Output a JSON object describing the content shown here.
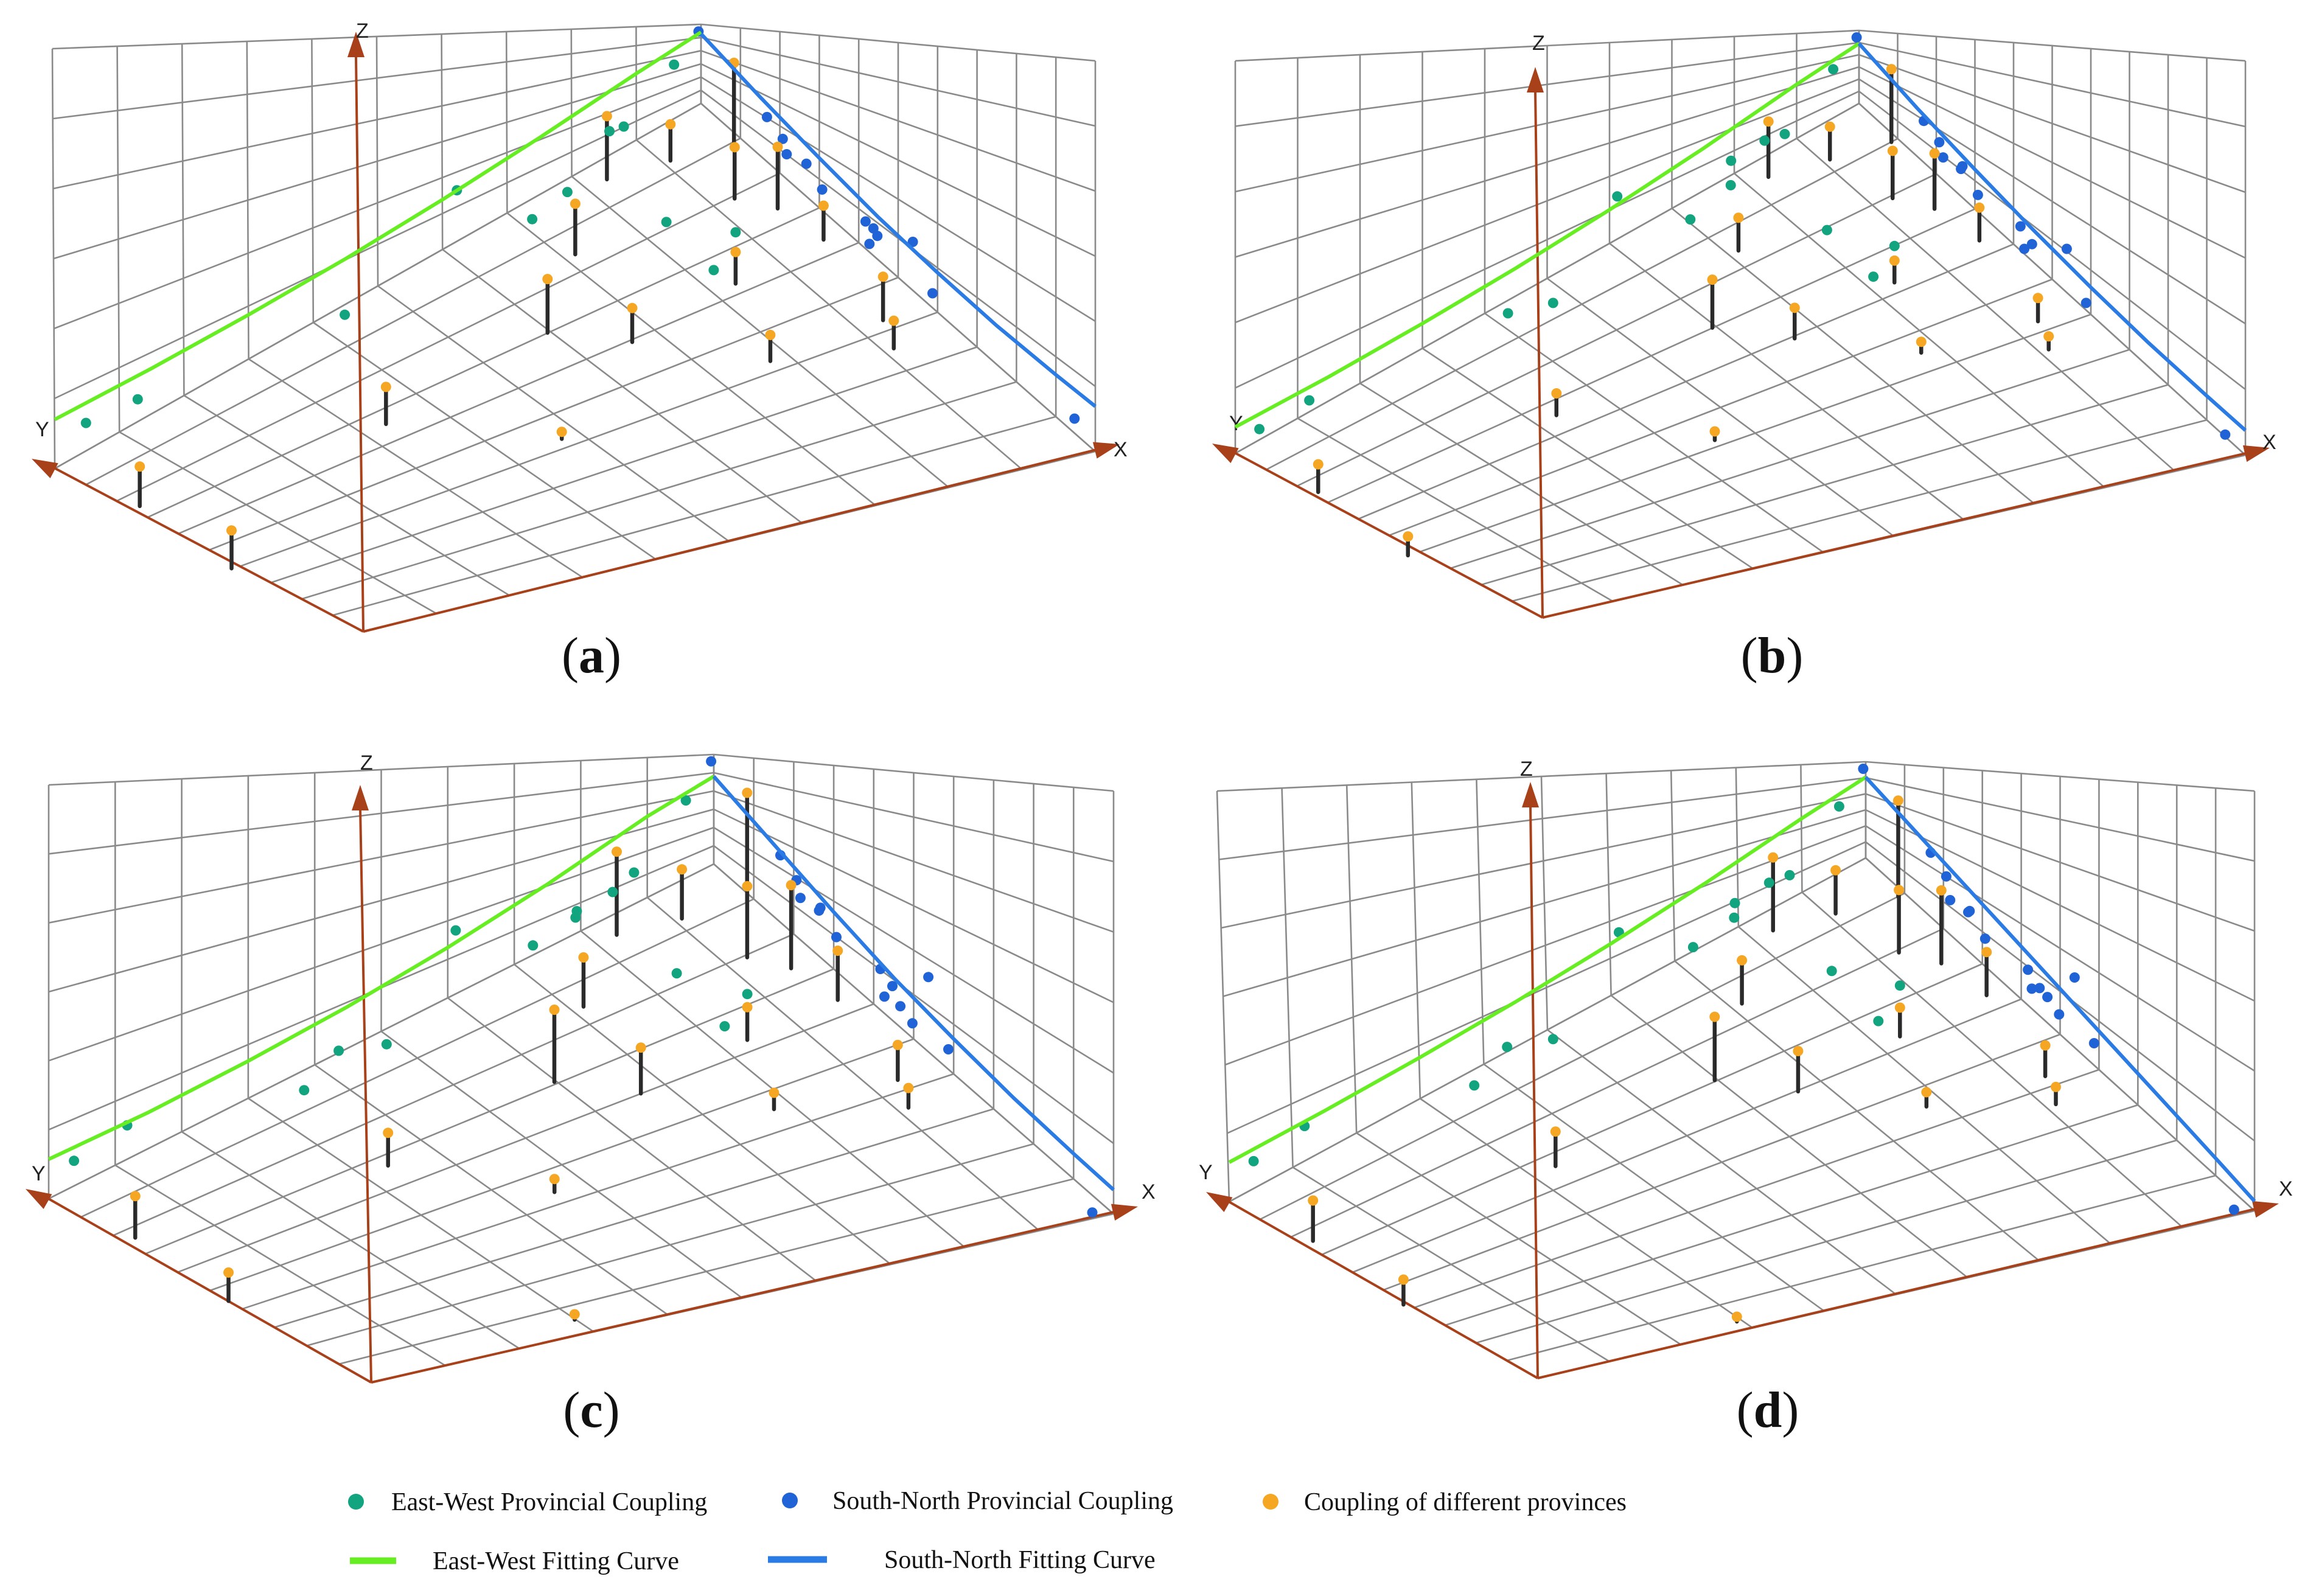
{
  "figure": {
    "axis_labels": {
      "x": "X",
      "y": "Y",
      "z": "Z"
    }
  },
  "colors": {
    "east_west": "#12a37f",
    "south_north": "#1f63d6",
    "different": "#f5a623",
    "fit_east_west": "#66ee22",
    "fit_south_north": "#2a7be4",
    "axis": "#a8401a",
    "grid": "#8a8a8a",
    "stem": "#2a2a2a"
  },
  "legend": {
    "east_west_point": "East-West Provincial Coupling",
    "south_north_point": "South-North Provincial Coupling",
    "different_point": "Coupling of different provinces",
    "east_west_curve": "East-West Fitting Curve",
    "south_north_curve": "South-North Fitting Curve"
  },
  "chart_data": [
    {
      "type": "scatter",
      "title": "",
      "panel": "a",
      "panel_label": "a",
      "axes": {
        "x_range": [
          0,
          10
        ],
        "y_range": [
          0,
          10
        ],
        "z_range": [
          0,
          10
        ],
        "grid": true
      },
      "east_west": [
        [
          0.3,
          9.7,
          5.7
        ],
        [
          0.3,
          8.9,
          5.0
        ],
        [
          0.8,
          6.0,
          4.5
        ],
        [
          0.8,
          3.1,
          3.2
        ],
        [
          0.5,
          1.5,
          6.2
        ],
        [
          1.2,
          2.8,
          7.0
        ],
        [
          0.2,
          3.9,
          7.9
        ],
        [
          0.3,
          1.6,
          5.2
        ],
        [
          2.4,
          2.0,
          4.8
        ],
        [
          3.6,
          2.0,
          4.0
        ],
        [
          3.5,
          1.6,
          6.5
        ],
        [
          0.3,
          0.6,
          9.0
        ]
      ],
      "south_north": [
        [
          2.0,
          0.2,
          8.0
        ],
        [
          2.4,
          0.2,
          7.0
        ],
        [
          3.0,
          0.2,
          6.5
        ],
        [
          4.5,
          0.2,
          5.8
        ],
        [
          4.7,
          0.2,
          5.8
        ],
        [
          2.5,
          0.2,
          5.5
        ],
        [
          3.4,
          0.2,
          5.0
        ],
        [
          4.8,
          0.2,
          5.3
        ],
        [
          5.7,
          0.2,
          8.5
        ],
        [
          6.2,
          0.2,
          4.2
        ],
        [
          4.6,
          0.2,
          3.4
        ],
        [
          9.8,
          0.2,
          4.2
        ],
        [
          0.1,
          0.1,
          10.0
        ]
      ],
      "different": [
        [
          1.5,
          9.6,
          5.0
        ],
        [
          3.5,
          9.4,
          4.8
        ],
        [
          2.5,
          6.4,
          4.7
        ],
        [
          2.5,
          3.9,
          6.8
        ],
        [
          5.2,
          2.1,
          3.3
        ],
        [
          3.5,
          3.2,
          4.3
        ],
        [
          1.4,
          2.8,
          6.4
        ],
        [
          6.2,
          0.8,
          3.5
        ],
        [
          3.5,
          1.6,
          4.0
        ],
        [
          0.4,
          1.7,
          8.0
        ],
        [
          2.0,
          0.7,
          6.5
        ],
        [
          5.6,
          0.6,
          5.5
        ],
        [
          0.7,
          0.9,
          4.6
        ],
        [
          2.6,
          0.4,
          7.8
        ],
        [
          3.6,
          0.3,
          4.3
        ],
        [
          1.0,
          0.1,
          10.0
        ],
        [
          4.5,
          4.9,
          0.9
        ]
      ],
      "fit_east_west": [
        [
          0,
          10.0,
          6.2
        ],
        [
          0,
          8.5,
          5.75
        ],
        [
          0,
          7.0,
          5.6
        ],
        [
          0,
          5.5,
          5.75
        ],
        [
          0,
          4.0,
          6.3
        ],
        [
          0,
          2.5,
          7.2
        ],
        [
          0,
          1.0,
          8.4
        ],
        [
          0,
          0,
          9.0
        ]
      ],
      "fit_south_north": [
        [
          0,
          0,
          8.8
        ],
        [
          1.5,
          0,
          7.4
        ],
        [
          3.0,
          0,
          6.3
        ],
        [
          4.5,
          0,
          5.4
        ],
        [
          6.0,
          0,
          5.0
        ],
        [
          7.5,
          0,
          4.9
        ],
        [
          9.0,
          0,
          5.3
        ],
        [
          10.0,
          0,
          5.7
        ]
      ]
    },
    {
      "type": "scatter",
      "title": "",
      "panel": "b",
      "panel_label": "b",
      "axes": {
        "x_range": [
          0,
          10
        ],
        "y_range": [
          0,
          10
        ],
        "z_range": [
          0,
          10
        ],
        "grid": true
      },
      "east_west": [
        [
          0.3,
          9.8,
          3.8
        ],
        [
          0.3,
          9.0,
          3.9
        ],
        [
          0.6,
          6.0,
          2.9
        ],
        [
          0.8,
          3.2,
          3.3
        ],
        [
          0.5,
          1.5,
          5.4
        ],
        [
          1.2,
          2.8,
          8.0
        ],
        [
          0.2,
          4.0,
          7.4
        ],
        [
          0.3,
          1.7,
          4.5
        ],
        [
          2.4,
          2.0,
          3.8
        ],
        [
          3.6,
          2.0,
          3.2
        ],
        [
          3.5,
          1.6,
          5.0
        ],
        [
          0.3,
          0.6,
          9.0
        ],
        [
          0.8,
          5.4,
          2.4
        ],
        [
          0.4,
          2.3,
          5.1
        ]
      ],
      "south_north": [
        [
          2.0,
          0.2,
          8.2
        ],
        [
          2.4,
          0.2,
          7.2
        ],
        [
          3.0,
          0.2,
          6.8
        ],
        [
          4.5,
          0.2,
          5.8
        ],
        [
          2.5,
          0.2,
          5.6
        ],
        [
          3.4,
          0.2,
          4.8
        ],
        [
          4.8,
          0.2,
          4.8
        ],
        [
          5.7,
          0.2,
          8.5
        ],
        [
          6.2,
          0.2,
          3.5
        ],
        [
          4.6,
          0.2,
          3.2
        ],
        [
          9.8,
          0.2,
          2.8
        ],
        [
          2.8,
          0.1,
          5.0
        ],
        [
          0.1,
          0.1,
          10.0
        ]
      ],
      "different": [
        [
          1.5,
          9.6,
          3.8
        ],
        [
          3.5,
          9.4,
          2.6
        ],
        [
          2.5,
          6.4,
          3.0
        ],
        [
          2.5,
          3.9,
          6.6
        ],
        [
          5.0,
          2.1,
          1.5
        ],
        [
          3.5,
          3.2,
          4.2
        ],
        [
          1.4,
          2.8,
          4.5
        ],
        [
          6.2,
          0.8,
          1.8
        ],
        [
          3.5,
          1.6,
          3.0
        ],
        [
          0.4,
          1.7,
          7.6
        ],
        [
          2.0,
          0.7,
          6.5
        ],
        [
          5.6,
          0.6,
          3.2
        ],
        [
          0.7,
          0.9,
          4.5
        ],
        [
          2.6,
          0.4,
          7.6
        ],
        [
          3.6,
          0.3,
          4.5
        ],
        [
          1.0,
          0.1,
          10.0
        ],
        [
          4.5,
          5.1,
          1.2
        ]
      ],
      "fit_east_west": [
        [
          0,
          10.0,
          3.6
        ],
        [
          0,
          8.5,
          3.3
        ],
        [
          0,
          7.0,
          3.4
        ],
        [
          0,
          5.5,
          3.8
        ],
        [
          0,
          4.0,
          4.6
        ],
        [
          0,
          2.5,
          5.8
        ],
        [
          0,
          1.0,
          7.4
        ],
        [
          0,
          0,
          8.2
        ]
      ],
      "fit_south_north": [
        [
          0,
          0,
          8.2
        ],
        [
          1.5,
          0,
          6.6
        ],
        [
          3.0,
          0,
          5.4
        ],
        [
          4.5,
          0,
          4.4
        ],
        [
          6.0,
          0,
          3.7
        ],
        [
          7.5,
          0,
          3.3
        ],
        [
          9.0,
          0,
          3.3
        ],
        [
          10.0,
          0,
          3.4
        ]
      ]
    },
    {
      "type": "scatter",
      "title": "",
      "panel": "c",
      "panel_label": "c",
      "axes": {
        "x_range": [
          0,
          10
        ],
        "y_range": [
          0,
          10
        ],
        "z_range": [
          0,
          10
        ],
        "grid": true
      },
      "east_west": [
        [
          0.3,
          9.8,
          3.8
        ],
        [
          0.3,
          9.0,
          4.6
        ],
        [
          0.6,
          6.0,
          3.2
        ],
        [
          0.8,
          3.2,
          4.9
        ],
        [
          0.5,
          1.5,
          5.4
        ],
        [
          1.2,
          2.8,
          7.5
        ],
        [
          0.2,
          4.0,
          6.8
        ],
        [
          0.3,
          1.7,
          3.6
        ],
        [
          2.4,
          2.0,
          3.8
        ],
        [
          3.6,
          2.0,
          2.8
        ],
        [
          3.5,
          1.6,
          4.2
        ],
        [
          0.3,
          0.6,
          8.6
        ],
        [
          0.8,
          5.4,
          2.6
        ],
        [
          0.4,
          2.3,
          4.0
        ],
        [
          0.9,
          6.7,
          2.7
        ]
      ],
      "south_north": [
        [
          2.0,
          0.2,
          7.8
        ],
        [
          2.4,
          0.2,
          6.8
        ],
        [
          3.0,
          0.2,
          6.2
        ],
        [
          4.5,
          0.2,
          5.4
        ],
        [
          2.5,
          0.2,
          5.5
        ],
        [
          3.4,
          0.2,
          4.8
        ],
        [
          4.8,
          0.2,
          4.8
        ],
        [
          5.7,
          0.2,
          8.5
        ],
        [
          6.2,
          0.2,
          3.5
        ],
        [
          4.6,
          0.2,
          3.2
        ],
        [
          9.8,
          0.2,
          0.1
        ],
        [
          2.8,
          0.1,
          5.0
        ],
        [
          0.1,
          0.1,
          10.0
        ],
        [
          5.3,
          0.2,
          3.0
        ],
        [
          5.0,
          0.2,
          3.6
        ]
      ],
      "different": [
        [
          1.5,
          9.6,
          3.8
        ],
        [
          3.5,
          9.4,
          2.6
        ],
        [
          2.5,
          6.4,
          3.0
        ],
        [
          2.5,
          3.9,
          6.6
        ],
        [
          5.0,
          2.1,
          1.5
        ],
        [
          3.5,
          3.2,
          4.2
        ],
        [
          1.4,
          2.8,
          4.5
        ],
        [
          6.2,
          0.8,
          1.8
        ],
        [
          3.5,
          1.6,
          3.0
        ],
        [
          0.4,
          1.7,
          7.6
        ],
        [
          2.0,
          0.7,
          6.5
        ],
        [
          5.6,
          0.6,
          3.2
        ],
        [
          0.7,
          0.9,
          4.5
        ],
        [
          2.6,
          0.4,
          7.6
        ],
        [
          3.6,
          0.3,
          4.5
        ],
        [
          1.0,
          0.1,
          10.0
        ],
        [
          4.5,
          5.1,
          1.2
        ],
        [
          7.0,
          6.3,
          0.5
        ]
      ],
      "fit_east_west": [
        [
          0,
          10.0,
          3.6
        ],
        [
          0,
          8.5,
          3.3
        ],
        [
          0,
          7.0,
          3.4
        ],
        [
          0,
          5.5,
          3.8
        ],
        [
          0,
          4.0,
          4.6
        ],
        [
          0,
          2.5,
          5.8
        ],
        [
          0,
          1.0,
          7.4
        ],
        [
          0,
          0,
          8.0
        ]
      ],
      "fit_south_north": [
        [
          0,
          0,
          8.0
        ],
        [
          1.5,
          0,
          6.6
        ],
        [
          3.0,
          0,
          5.2
        ],
        [
          4.5,
          0,
          4.0
        ],
        [
          6.0,
          0,
          3.2
        ],
        [
          7.5,
          0,
          2.6
        ],
        [
          9.0,
          0,
          2.3
        ],
        [
          10.0,
          0,
          2.2
        ]
      ]
    },
    {
      "type": "scatter",
      "title": "",
      "panel": "d",
      "panel_label": "d",
      "axes": {
        "x_range": [
          0,
          10
        ],
        "y_range": [
          0,
          10
        ],
        "z_range": [
          0,
          10
        ],
        "grid": true
      },
      "east_west": [
        [
          0.3,
          9.8,
          4.6
        ],
        [
          0.3,
          9.0,
          5.4
        ],
        [
          0.6,
          6.0,
          4.0
        ],
        [
          0.8,
          3.2,
          5.1
        ],
        [
          0.5,
          1.5,
          5.4
        ],
        [
          1.2,
          2.8,
          8.2
        ],
        [
          0.2,
          4.0,
          7.3
        ],
        [
          0.3,
          1.7,
          4.6
        ],
        [
          2.4,
          2.0,
          4.2
        ],
        [
          3.6,
          2.0,
          3.4
        ],
        [
          3.5,
          1.6,
          5.3
        ],
        [
          0.3,
          0.6,
          8.6
        ],
        [
          0.8,
          5.4,
          3.4
        ],
        [
          0.4,
          2.3,
          5.0
        ],
        [
          0.9,
          6.7,
          3.6
        ]
      ],
      "south_north": [
        [
          2.0,
          0.2,
          8.6
        ],
        [
          2.4,
          0.2,
          7.6
        ],
        [
          3.0,
          0.2,
          6.2
        ],
        [
          4.5,
          0.2,
          5.6
        ],
        [
          2.5,
          0.2,
          5.5
        ],
        [
          3.4,
          0.2,
          4.8
        ],
        [
          4.8,
          0.2,
          4.8
        ],
        [
          5.7,
          0.2,
          9.2
        ],
        [
          6.2,
          0.2,
          4.2
        ],
        [
          4.6,
          0.2,
          4.0
        ],
        [
          9.8,
          0.2,
          0.1
        ],
        [
          2.8,
          0.1,
          5.0
        ],
        [
          0.1,
          0.1,
          10.0
        ],
        [
          5.3,
          0.2,
          3.9
        ],
        [
          5.0,
          0.2,
          4.6
        ]
      ],
      "different": [
        [
          1.5,
          9.6,
          4.2
        ],
        [
          3.5,
          9.4,
          2.6
        ],
        [
          2.5,
          6.4,
          3.6
        ],
        [
          2.5,
          3.9,
          6.6
        ],
        [
          5.0,
          2.1,
          1.5
        ],
        [
          3.5,
          3.2,
          4.2
        ],
        [
          1.4,
          2.8,
          4.5
        ],
        [
          6.2,
          0.8,
          1.8
        ],
        [
          3.5,
          1.6,
          3.0
        ],
        [
          0.4,
          1.7,
          7.6
        ],
        [
          2.0,
          0.7,
          6.5
        ],
        [
          5.6,
          0.6,
          3.2
        ],
        [
          0.7,
          0.9,
          4.5
        ],
        [
          2.6,
          0.4,
          7.6
        ],
        [
          3.6,
          0.3,
          4.5
        ],
        [
          1.0,
          0.1,
          10.0
        ],
        [
          7.0,
          6.3,
          0.5
        ]
      ],
      "fit_east_west": [
        [
          0,
          10.0,
          4.1
        ],
        [
          0,
          8.5,
          4.1
        ],
        [
          0,
          7.0,
          4.3
        ],
        [
          0,
          5.5,
          4.7
        ],
        [
          0,
          4.0,
          5.4
        ],
        [
          0,
          2.5,
          6.4
        ],
        [
          0,
          1.0,
          7.7
        ],
        [
          0,
          0,
          8.4
        ]
      ],
      "fit_south_north": [
        [
          0,
          0,
          8.4
        ],
        [
          1.5,
          0,
          7.3
        ],
        [
          3.0,
          0,
          6.2
        ],
        [
          4.5,
          0,
          5.1
        ],
        [
          6.0,
          0,
          4.0
        ],
        [
          7.5,
          0,
          2.9
        ],
        [
          9.0,
          0,
          1.8
        ],
        [
          10.0,
          0,
          1.0
        ]
      ]
    }
  ]
}
